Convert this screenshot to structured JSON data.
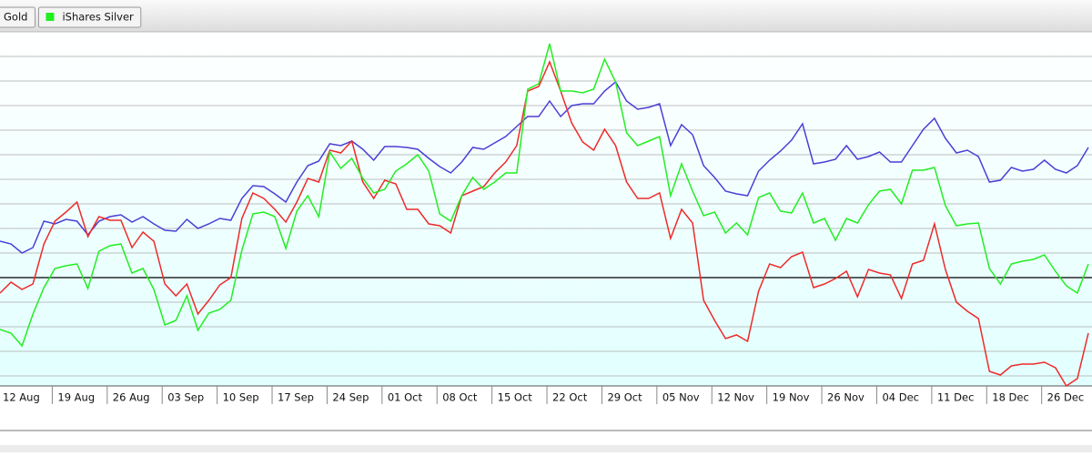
{
  "chart_data": {
    "type": "line",
    "categories": [
      "12 Aug",
      null,
      null,
      null,
      null,
      "19 Aug",
      null,
      null,
      null,
      null,
      "26 Aug",
      null,
      null,
      null,
      null,
      "03 Sep",
      null,
      null,
      null,
      null,
      "10 Sep",
      null,
      null,
      null,
      null,
      "17 Sep",
      null,
      null,
      null,
      null,
      "24 Sep",
      null,
      null,
      null,
      null,
      "01 Oct",
      null,
      null,
      null,
      null,
      "08 Oct",
      null,
      null,
      null,
      null,
      "15 Oct",
      null,
      null,
      null,
      null,
      "22 Oct",
      null,
      null,
      null,
      null,
      "29 Oct",
      null,
      null,
      null,
      null,
      "05 Nov",
      null,
      null,
      null,
      null,
      "12 Nov",
      null,
      null,
      null,
      null,
      "19 Nov",
      null,
      null,
      null,
      null,
      "26 Nov",
      null,
      null,
      null,
      null,
      "04 Dec",
      null,
      null,
      null,
      null,
      "11 Dec",
      null,
      null,
      null,
      null,
      "18 Dec",
      null,
      null,
      null,
      null,
      "26 Dec",
      null,
      null,
      null,
      null
    ],
    "series": [
      {
        "color": "#4a3fd6",
        "values": [
          40,
          37,
          27,
          33,
          62,
          59,
          64,
          62,
          47,
          62,
          67,
          69,
          61,
          67,
          59,
          52,
          51,
          64,
          54,
          59,
          65,
          63,
          87,
          101,
          100,
          92,
          83,
          105,
          123,
          128,
          147,
          145,
          150,
          141,
          129,
          144,
          144,
          143,
          141,
          131,
          122,
          115,
          127,
          143,
          141,
          148,
          155,
          166,
          177,
          177,
          194,
          177,
          189,
          191,
          191,
          205,
          215,
          194,
          185,
          187,
          191,
          145,
          168,
          157,
          123,
          110,
          95,
          92,
          90,
          117,
          129,
          139,
          151,
          169,
          125,
          127,
          130,
          145,
          130,
          133,
          138,
          127,
          127,
          145,
          163,
          175,
          153,
          137,
          140,
          133,
          105,
          107,
          121,
          117,
          119,
          129,
          119,
          115,
          123,
          143
        ]
      },
      {
        "name": "Gold",
        "color": "#ee2a2a",
        "values": [
          -17,
          -5,
          -13,
          -7,
          37,
          62,
          72,
          83,
          45,
          67,
          63,
          63,
          33,
          50,
          40,
          -7,
          -20,
          -7,
          -40,
          -25,
          -8,
          0,
          65,
          93,
          87,
          75,
          61,
          83,
          109,
          105,
          140,
          137,
          150,
          105,
          87,
          107,
          103,
          75,
          75,
          59,
          57,
          49,
          90,
          95,
          100,
          115,
          127,
          145,
          205,
          210,
          237,
          205,
          170,
          149,
          140,
          163,
          145,
          105,
          87,
          87,
          93,
          43,
          75,
          60,
          -25,
          -47,
          -67,
          -63,
          -70,
          -15,
          15,
          11,
          23,
          28,
          -11,
          -7,
          -1,
          7,
          -21,
          9,
          5,
          3,
          -23,
          15,
          19,
          59,
          9,
          -27,
          -37,
          -45,
          -103,
          -107,
          -97,
          -95,
          -95,
          -93,
          -99,
          -119,
          -111,
          -61
        ]
      },
      {
        "name": "iShares Silver",
        "color": "#22ee22",
        "values": [
          -57,
          -61,
          -75,
          -40,
          -11,
          10,
          13,
          15,
          -12,
          29,
          35,
          37,
          5,
          10,
          -13,
          -52,
          -47,
          -20,
          -58,
          -39,
          -35,
          -25,
          30,
          70,
          72,
          67,
          32,
          73,
          90,
          67,
          138,
          120,
          131,
          109,
          93,
          97,
          117,
          125,
          135,
          117,
          70,
          62,
          90,
          110,
          97,
          105,
          115,
          115,
          207,
          213,
          257,
          205,
          205,
          203,
          207,
          240,
          215,
          159,
          145,
          150,
          155,
          90,
          125,
          95,
          68,
          72,
          49,
          60,
          47,
          88,
          93,
          73,
          71,
          93,
          60,
          65,
          41,
          65,
          60,
          80,
          95,
          97,
          81,
          118,
          118,
          121,
          79,
          57,
          59,
          60,
          10,
          -7,
          15,
          18,
          20,
          25,
          7,
          -9,
          -17,
          15
        ]
      }
    ],
    "ylim": [
      -119,
      270
    ],
    "yticks": [
      -108,
      -81,
      -54,
      -27,
      0,
      27,
      54,
      81,
      108,
      135,
      162,
      189,
      216,
      243,
      270
    ],
    "grid": true
  }
}
